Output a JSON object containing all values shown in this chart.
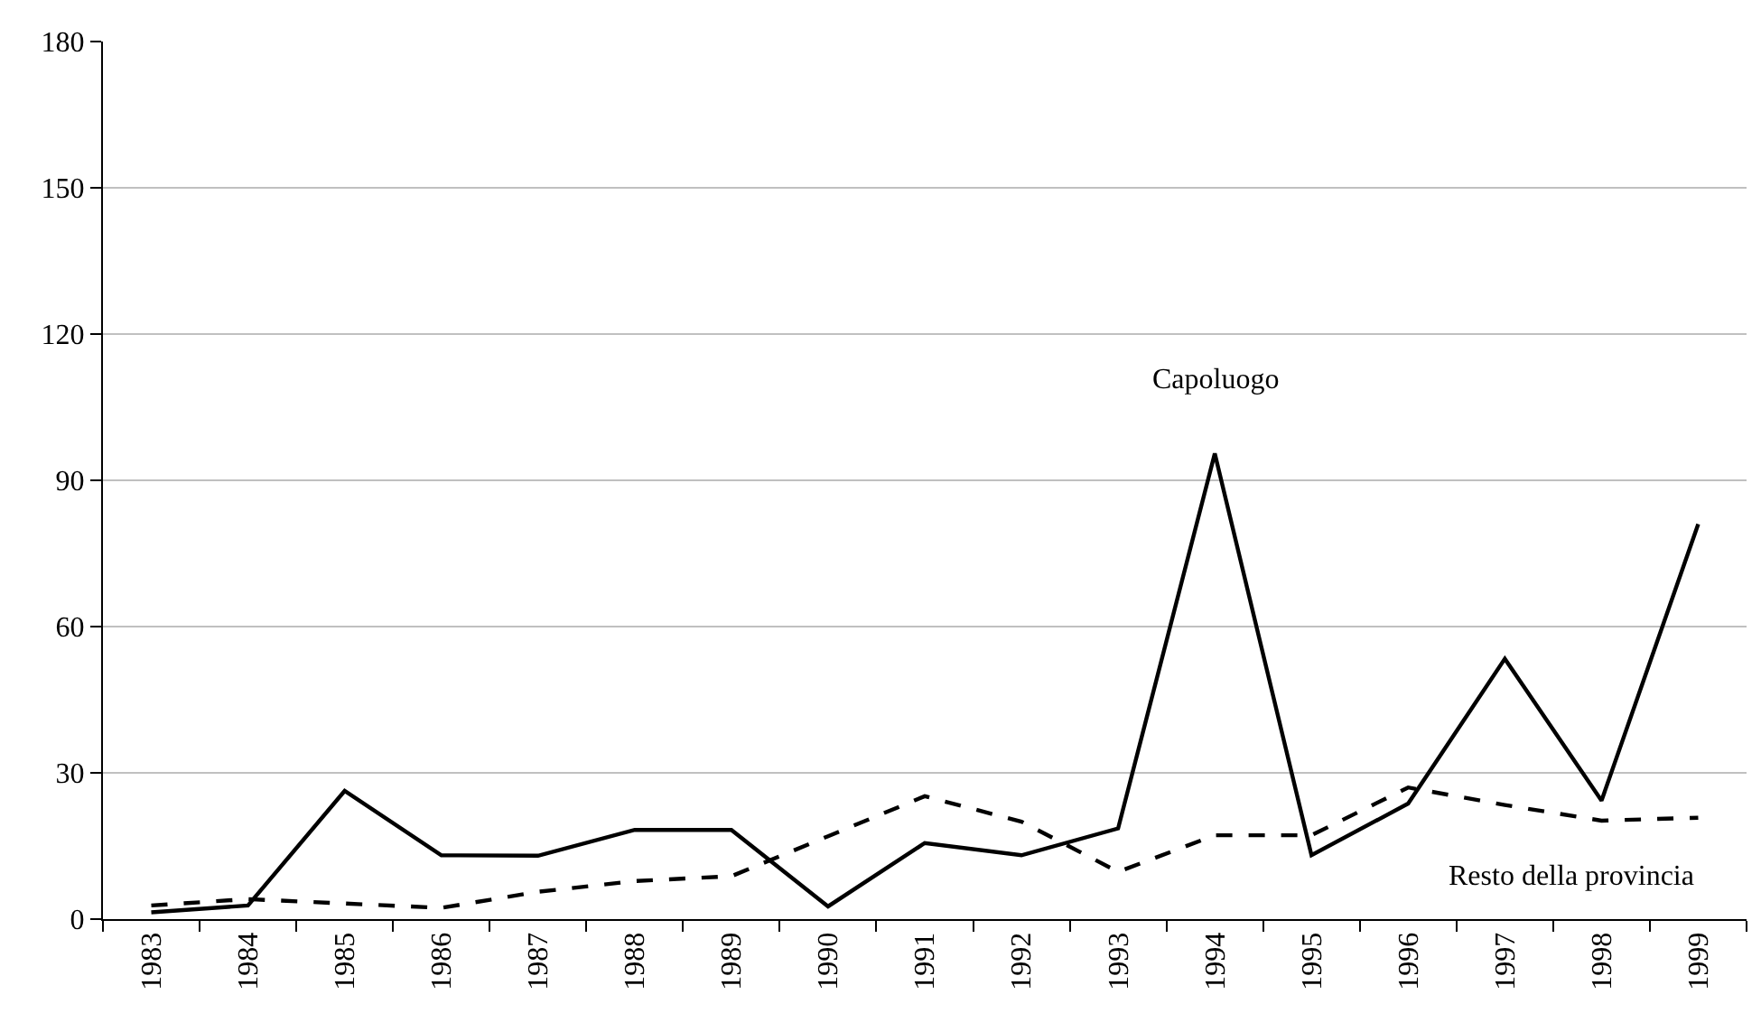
{
  "chart_data": {
    "type": "line",
    "categories": [
      "1983",
      "1984",
      "1985",
      "1986",
      "1987",
      "1988",
      "1989",
      "1990",
      "1991",
      "1992",
      "1993",
      "1994",
      "1995",
      "1996",
      "1997",
      "1998",
      "1999"
    ],
    "series": [
      {
        "name": "Capoluogo",
        "color": "#000000",
        "line_style": "solid",
        "values": [
          1.4,
          2.8,
          26.3,
          13.1,
          13.0,
          18.3,
          18.3,
          2.6,
          15.6,
          13.1,
          18.6,
          95.5,
          13.1,
          23.7,
          53.4,
          24.3,
          81.0
        ]
      },
      {
        "name": "Resto della provincia",
        "color": "#000000",
        "line_style": "dashed",
        "values": [
          2.8,
          4.1,
          3.2,
          2.3,
          5.6,
          7.8,
          8.8,
          17.0,
          25.2,
          20.0,
          9.7,
          17.2,
          17.2,
          27.0,
          23.4,
          20.2,
          20.8
        ]
      }
    ],
    "ylim": [
      0,
      180
    ],
    "yticks": [
      0,
      30,
      60,
      90,
      120,
      150,
      180
    ],
    "grid": "y",
    "legend": false,
    "marker": "none"
  }
}
